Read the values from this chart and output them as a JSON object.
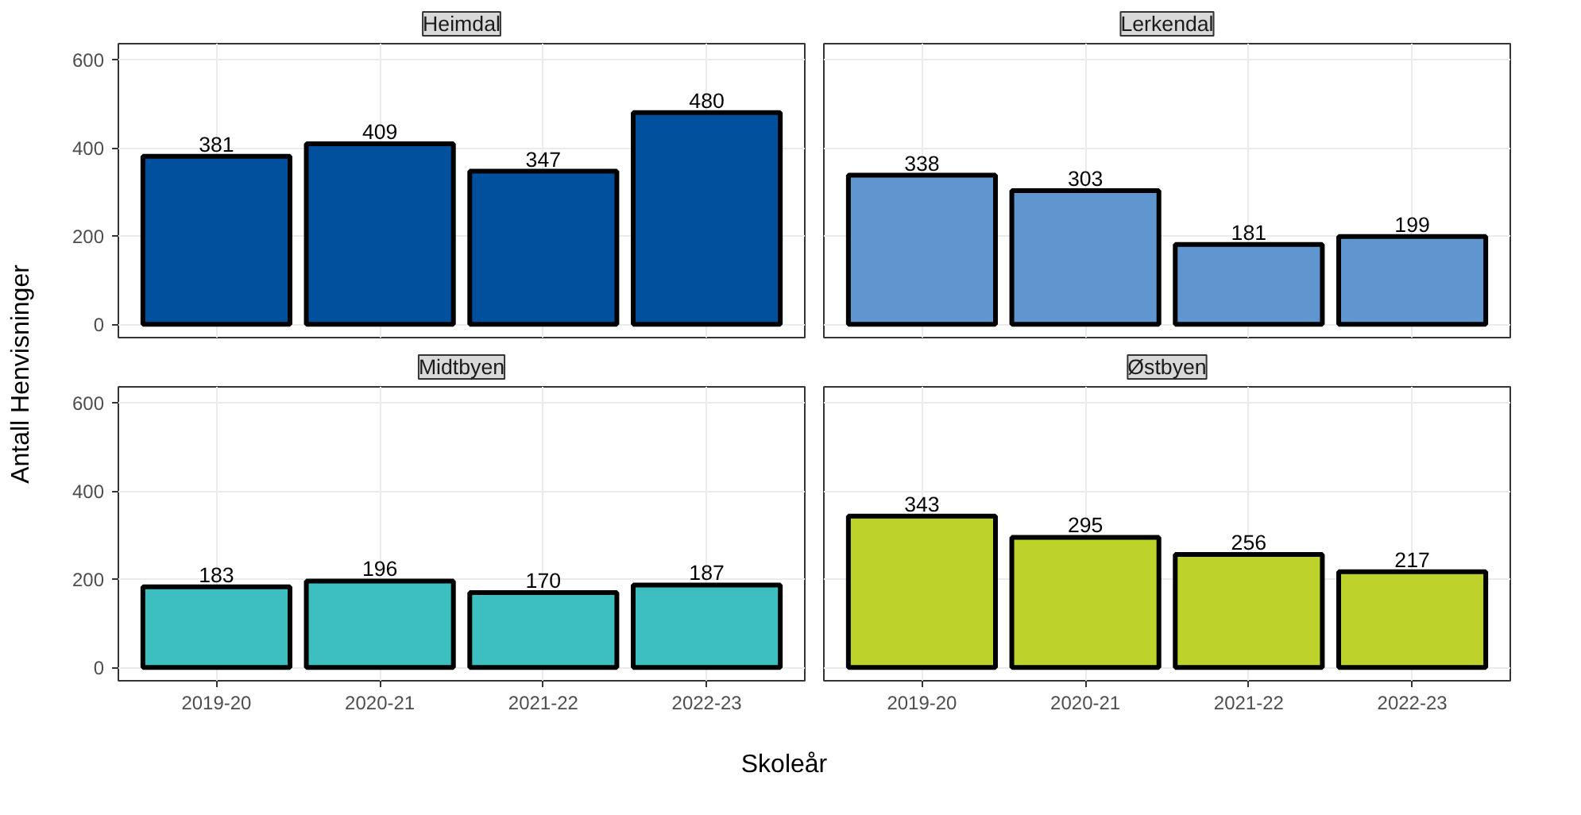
{
  "chart_data": [
    {
      "type": "bar",
      "title": "Heimdal",
      "ylabel": "Antall Henvisninger",
      "categories": [
        "2019-20",
        "2020-21",
        "2021-22",
        "2022-23"
      ],
      "values": [
        381,
        409,
        347,
        480
      ],
      "color": "#00509e",
      "ylim": [
        -30,
        636
      ],
      "yticks": [
        0,
        200,
        400,
        600
      ],
      "data_labels": true,
      "grid": true,
      "tick_labels": "y"
    },
    {
      "type": "bar",
      "title": "Lerkendal",
      "categories": [
        "2019-20",
        "2020-21",
        "2021-22",
        "2022-23"
      ],
      "values": [
        338,
        303,
        181,
        199
      ],
      "color": "#6096d0",
      "ylim": [
        -30,
        636
      ],
      "yticks": [
        0,
        200,
        400,
        600
      ],
      "data_labels": true,
      "grid": true,
      "tick_labels": false
    },
    {
      "type": "bar",
      "title": "Midtbyen",
      "xlabel": "Skoleår",
      "categories": [
        "2019-20",
        "2020-21",
        "2021-22",
        "2022-23"
      ],
      "values": [
        183,
        196,
        170,
        187
      ],
      "color": "#3dbfc0",
      "ylim": [
        -30,
        636
      ],
      "yticks": [
        0,
        200,
        400,
        600
      ],
      "data_labels": true,
      "grid": true
    },
    {
      "type": "bar",
      "title": "Østbyen",
      "categories": [
        "2019-20",
        "2020-21",
        "2021-22",
        "2022-23"
      ],
      "values": [
        343,
        295,
        256,
        217
      ],
      "color": "#bdd22a",
      "ylim": [
        -30,
        636
      ],
      "yticks": [
        0,
        200,
        400,
        600
      ],
      "data_labels": true,
      "grid": true,
      "tick_labels": "x"
    }
  ]
}
